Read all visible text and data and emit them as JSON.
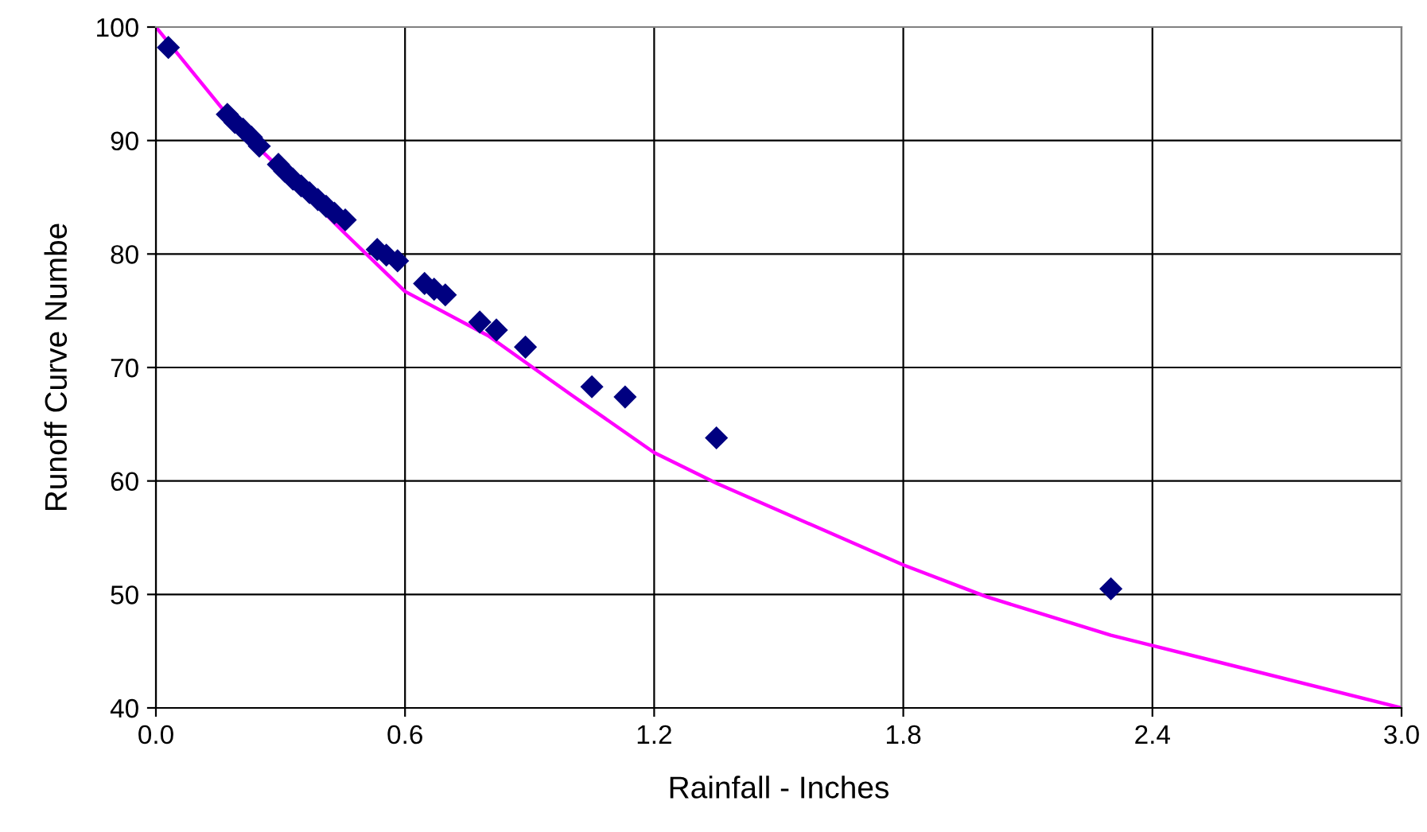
{
  "chart_data": {
    "type": "scatter",
    "xlabel": "Rainfall - Inches",
    "ylabel": "Runoff Curve Numbe",
    "xlim": [
      0,
      3.0
    ],
    "xticks": [
      {
        "value": 0,
        "label": "0.0"
      },
      0.6,
      1.2,
      1.8,
      2.4,
      {
        "value": 3,
        "label": "3.0"
      }
    ],
    "ylim": [
      40,
      100
    ],
    "yticks": [
      40,
      50,
      60,
      70,
      80,
      90,
      100
    ],
    "grid": true,
    "series": [
      {
        "color": "#000080",
        "marker": "diamond",
        "x": [
          0.03,
          0.172,
          0.19,
          0.21,
          0.23,
          0.249,
          0.295,
          0.31,
          0.33,
          0.35,
          0.37,
          0.39,
          0.41,
          0.43,
          0.456,
          0.533,
          0.555,
          0.582,
          0.647,
          0.67,
          0.697,
          0.78,
          0.82,
          0.89,
          1.05,
          1.13,
          1.35,
          2.3
        ],
        "values": [
          98.2,
          92.3,
          91.6,
          91.0,
          90.3,
          89.5,
          87.9,
          87.3,
          86.6,
          86.0,
          85.4,
          84.8,
          84.2,
          83.6,
          83.0,
          80.4,
          79.9,
          79.4,
          77.4,
          76.9,
          76.4,
          74.0,
          73.3,
          71.8,
          68.3,
          67.4,
          63.8,
          50.5
        ]
      },
      {
        "type": "line",
        "color": "#ff00ff",
        "marker": "none",
        "line_style": "solid",
        "x": [
          0,
          0.2,
          0.3,
          0.45,
          0.6,
          0.8,
          1.0,
          1.2,
          1.35,
          1.8,
          2.0,
          2.3,
          2.4,
          3.0
        ],
        "values": [
          100,
          91,
          87.5,
          82,
          76.7,
          72.8,
          67.6,
          62.5,
          59.8,
          52.6,
          49.8,
          46.4,
          45.5,
          40
        ]
      }
    ]
  }
}
